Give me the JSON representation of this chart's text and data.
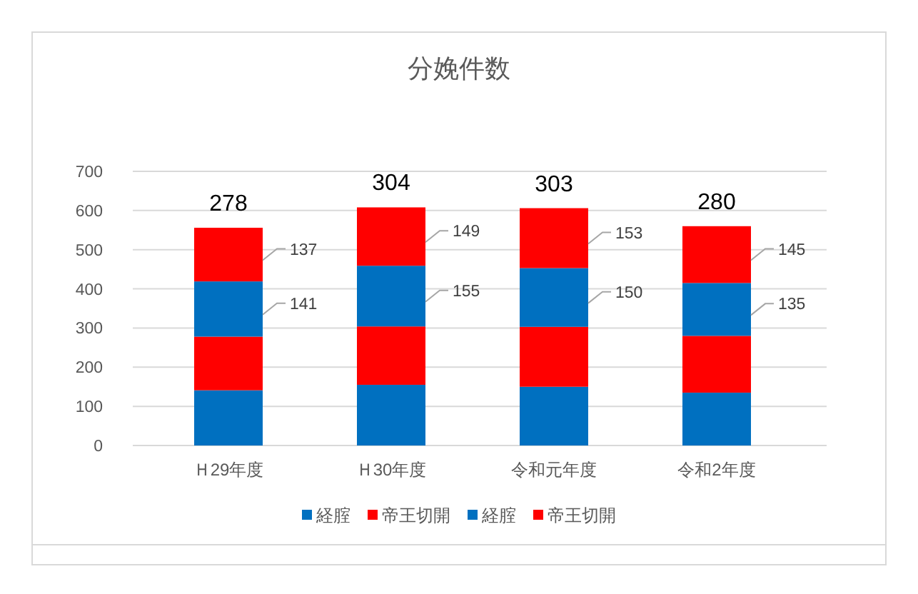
{
  "chart_data": {
    "type": "bar",
    "title": "分娩件数",
    "categories": [
      "Ｈ29年度",
      "Ｈ30年度",
      "令和元年度",
      "令和2年度"
    ],
    "stacked": true,
    "series": [
      {
        "name": "経腟",
        "color": "#0070c0",
        "values": [
          141,
          155,
          150,
          135
        ]
      },
      {
        "name": "帝王切開",
        "color": "#ff0000",
        "values": [
          137,
          149,
          153,
          145
        ]
      },
      {
        "name": "経腟",
        "color": "#0070c0",
        "values": [
          141,
          155,
          150,
          135
        ],
        "value_labels": [
          "141",
          "155",
          "150",
          "135"
        ]
      },
      {
        "name": "帝王切開",
        "color": "#ff0000",
        "values": [
          137,
          149,
          153,
          145
        ],
        "value_labels": [
          "137",
          "149",
          "153",
          "145"
        ]
      }
    ],
    "annotations": [
      {
        "text": "278",
        "x": "Ｈ29年度",
        "y": 556
      },
      {
        "text": "304",
        "x": "Ｈ30年度",
        "y": 608
      },
      {
        "text": "303",
        "x": "令和元年度",
        "y": 606
      },
      {
        "text": "280",
        "x": "令和2年度",
        "y": 560
      }
    ],
    "ylim": [
      0,
      700
    ],
    "yticks": [
      0,
      100,
      200,
      300,
      400,
      500,
      600,
      700
    ],
    "grid": "y",
    "legend": "bottom"
  }
}
